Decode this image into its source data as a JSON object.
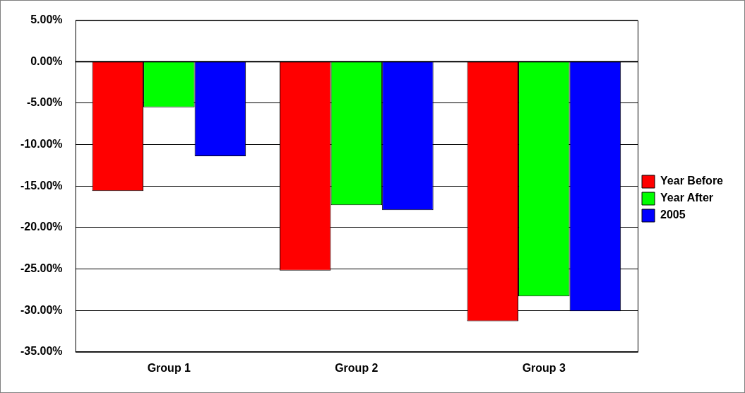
{
  "chart_data": {
    "type": "bar",
    "categories": [
      "Group 1",
      "Group 2",
      "Group 3"
    ],
    "series": [
      {
        "name": "Year Before",
        "color": "#ff0000",
        "values": [
          -15.6,
          -25.2,
          -31.3
        ]
      },
      {
        "name": "Year After",
        "color": "#00ff00",
        "values": [
          -5.5,
          -17.3,
          -28.3
        ]
      },
      {
        "name": "2005",
        "color": "#0000ff",
        "values": [
          -11.4,
          -17.9,
          -30.1
        ]
      }
    ],
    "ylim": [
      -35,
      5
    ],
    "yticks": [
      {
        "value": -35,
        "label": "-35.00%"
      },
      {
        "value": -30,
        "label": "-30.00%"
      },
      {
        "value": -25,
        "label": "-25.00%"
      },
      {
        "value": -20,
        "label": "-20.00%"
      },
      {
        "value": -15,
        "label": "-15.00%"
      },
      {
        "value": -10,
        "label": "-10.00%"
      },
      {
        "value": -5,
        "label": "-5.00%"
      },
      {
        "value": 0,
        "label": "0.00%"
      },
      {
        "value": 5,
        "label": "5.00%"
      }
    ],
    "grid": "y",
    "legend": "right"
  }
}
